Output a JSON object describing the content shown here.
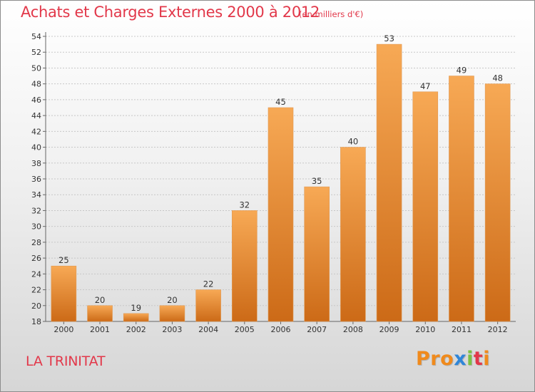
{
  "header": {
    "title": "Achats et Charges Externes 2000 à 2012",
    "subtitle": "(en milliers d'€)"
  },
  "footer": {
    "place": "LA TRINITAT",
    "brand": "Proxiti"
  },
  "colors": {
    "title": "#e2384a",
    "bar_light": "#f7a955",
    "bar_dark": "#cc6a17",
    "logo_letters": [
      "#f08a1c",
      "#f08a1c",
      "#f08a1c",
      "#2f86d8",
      "#7cc242",
      "#e2384a",
      "#f08a1c"
    ]
  },
  "chart_data": {
    "type": "bar",
    "title": "Achats et Charges Externes 2000 à 2012",
    "subtitle": "(en milliers d'€)",
    "xlabel": "",
    "ylabel": "",
    "categories": [
      "2000",
      "2001",
      "2002",
      "2003",
      "2004",
      "2005",
      "2006",
      "2007",
      "2008",
      "2009",
      "2010",
      "2011",
      "2012"
    ],
    "values": [
      25,
      20,
      19,
      20,
      22,
      32,
      45,
      35,
      40,
      53,
      47,
      49,
      48
    ],
    "data_labels": [
      "25",
      "20",
      "19",
      "20",
      "22",
      "32",
      "45",
      "35",
      "40",
      "53",
      "47",
      "49",
      "48"
    ],
    "ylim": [
      18,
      54
    ],
    "yticks": [
      "18",
      "20",
      "22",
      "24",
      "26",
      "28",
      "30",
      "32",
      "34",
      "36",
      "38",
      "40",
      "42",
      "44",
      "46",
      "48",
      "50",
      "52",
      "54"
    ],
    "grid": true,
    "legend": "none"
  }
}
